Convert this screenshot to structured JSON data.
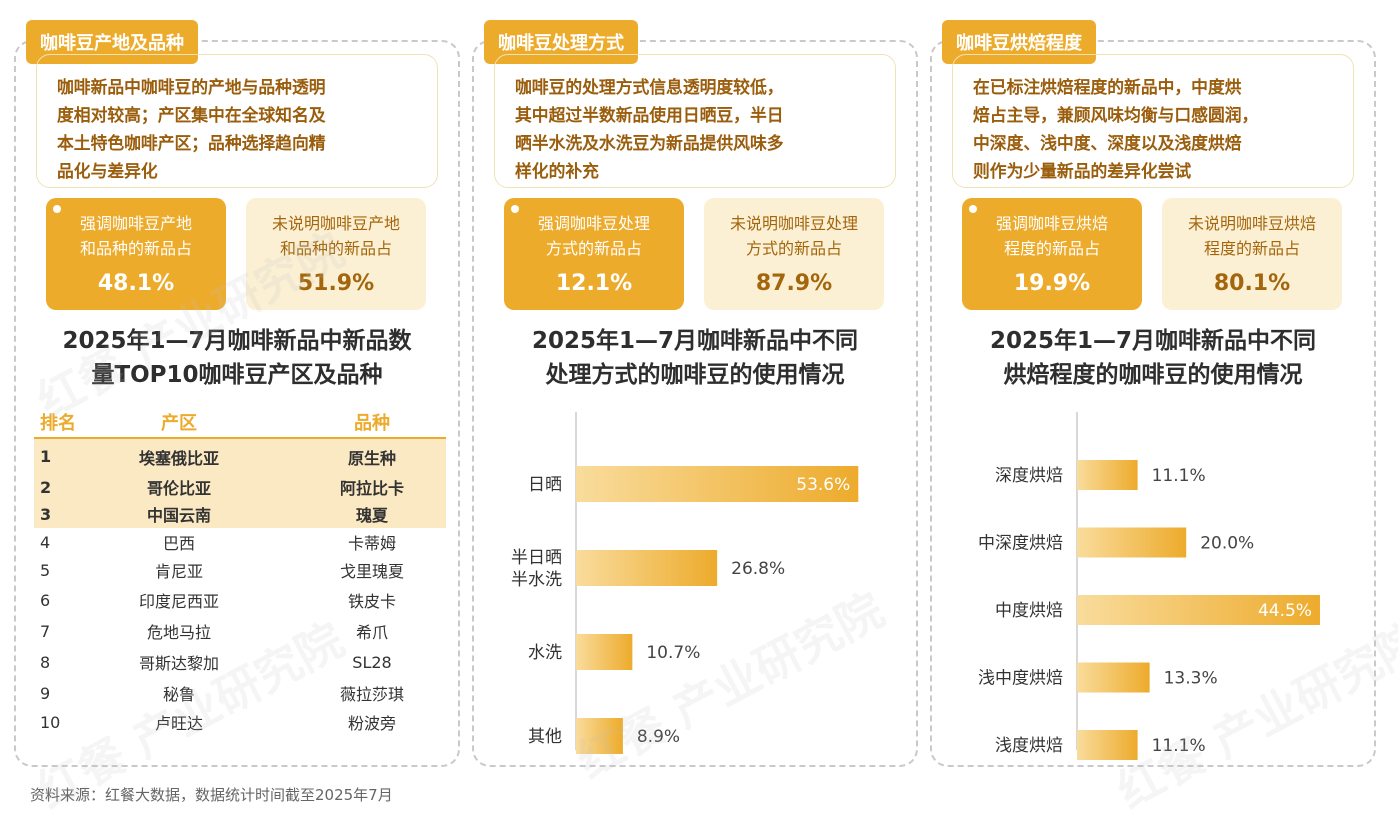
{
  "source": "资料来源：红餐大数据，数据统计时间截至2025年7月",
  "watermark": "红餐 产业研究院",
  "colors": {
    "accent": "#edab2c",
    "accent_light": "#fbf0d4",
    "text_brown": "#9a5d0c"
  },
  "panels": [
    {
      "tag": "咖啡豆产地及品种",
      "summary": [
        "咖啡新品中咖啡豆的产地与品种透明",
        "度相对较高；产区集中在全球知名及",
        "本土特色咖啡产区；品种选择趋向精",
        "品化与差异化"
      ],
      "stat_left": {
        "label": [
          "强调咖啡豆产地",
          "和品种的新品占"
        ],
        "value": "48.1%"
      },
      "stat_right": {
        "label": [
          "未说明咖啡豆产地",
          "和品种的新品占"
        ],
        "value": "51.9%"
      },
      "chart_title": [
        "2025年1—7月咖啡新品中新品数",
        "量TOP10咖啡豆产区及品种"
      ]
    },
    {
      "tag": "咖啡豆处理方式",
      "summary": [
        "咖啡豆的处理方式信息透明度较低，",
        "其中超过半数新品使用日晒豆，半日",
        "晒半水洗及水洗豆为新品提供风味多",
        "样化的补充"
      ],
      "stat_left": {
        "label": [
          "强调咖啡豆处理",
          "方式的新品占"
        ],
        "value": "12.1%"
      },
      "stat_right": {
        "label": [
          "未说明咖啡豆处理",
          "方式的新品占"
        ],
        "value": "87.9%"
      },
      "chart_title": [
        "2025年1—7月咖啡新品中不同",
        "处理方式的咖啡豆的使用情况"
      ]
    },
    {
      "tag": "咖啡豆烘焙程度",
      "summary": [
        "在已标注烘焙程度的新品中，中度烘",
        "焙占主导，兼顾风味均衡与口感圆润，",
        "中深度、浅中度、深度以及浅度烘焙",
        "则作为少量新品的差异化尝试"
      ],
      "stat_left": {
        "label": [
          "强调咖啡豆烘焙",
          "程度的新品占"
        ],
        "value": "19.9%"
      },
      "stat_right": {
        "label": [
          "未说明咖啡豆烘焙",
          "程度的新品占"
        ],
        "value": "80.1%"
      },
      "chart_title": [
        "2025年1—7月咖啡新品中不同",
        "烘焙程度的咖啡豆的使用情况"
      ]
    }
  ],
  "chart_data": [
    {
      "type": "table",
      "columns": [
        "排名",
        "产区",
        "品种"
      ],
      "rows": [
        [
          "1",
          "埃塞俄比亚",
          "原生种"
        ],
        [
          "2",
          "哥伦比亚",
          "阿拉比卡"
        ],
        [
          "3",
          "中国云南",
          "瑰夏"
        ],
        [
          "4",
          "巴西",
          "卡蒂姆"
        ],
        [
          "5",
          "肯尼亚",
          "戈里瑰夏"
        ],
        [
          "6",
          "印度尼西亚",
          "铁皮卡"
        ],
        [
          "7",
          "危地马拉",
          "希爪"
        ],
        [
          "8",
          "哥斯达黎加",
          "SL28"
        ],
        [
          "9",
          "秘鲁",
          "薇拉莎琪"
        ],
        [
          "10",
          "卢旺达",
          "粉波旁"
        ]
      ],
      "highlighted_rows": 3
    },
    {
      "type": "bar",
      "orientation": "horizontal",
      "categories": [
        [
          "日晒"
        ],
        [
          "半日晒",
          "半水洗"
        ],
        [
          "水洗"
        ],
        [
          "其他"
        ]
      ],
      "values": [
        53.6,
        26.8,
        10.7,
        8.9
      ],
      "labels": [
        "53.6%",
        "26.8%",
        "10.7%",
        "8.9%"
      ],
      "xlim": [
        0,
        60
      ],
      "label_inside_index": 0
    },
    {
      "type": "bar",
      "orientation": "horizontal",
      "categories": [
        [
          "深度烘焙"
        ],
        [
          "中深度烘焙"
        ],
        [
          "中度烘焙"
        ],
        [
          "浅中度烘焙"
        ],
        [
          "浅度烘焙"
        ]
      ],
      "values": [
        11.1,
        20.0,
        44.5,
        13.3,
        11.1
      ],
      "labels": [
        "11.1%",
        "20.0%",
        "44.5%",
        "13.3%",
        "11.1%"
      ],
      "xlim": [
        0,
        50
      ],
      "label_inside_index": 2
    }
  ]
}
